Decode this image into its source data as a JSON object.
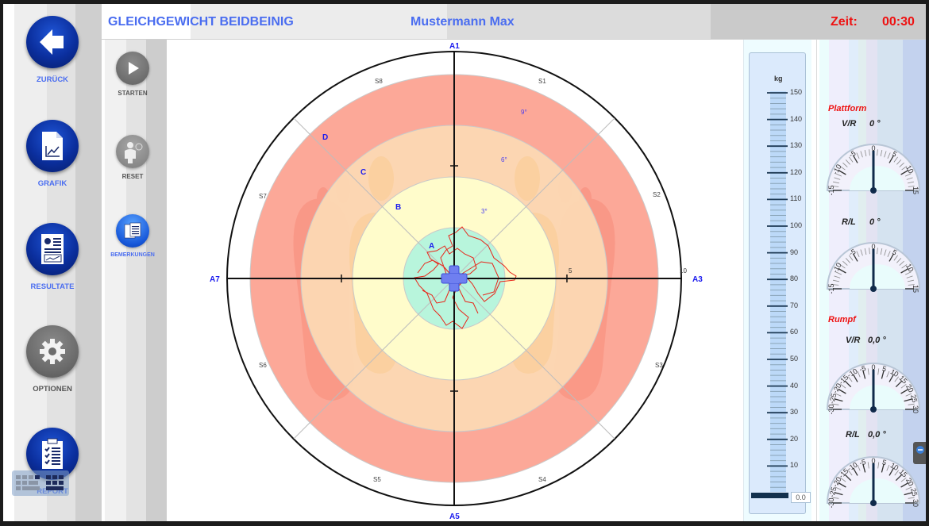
{
  "header": {
    "title": "GLEICHGEWICHT BEIDBEINIG",
    "patient": "Mustermann Max",
    "time_label": "Zeit:",
    "time_value": "00:30"
  },
  "nav": {
    "items": [
      {
        "label": "ZURÜCK",
        "icon": "back-arrow-icon"
      },
      {
        "label": "GRAFIK",
        "icon": "chart-document-icon"
      },
      {
        "label": "RESULTATE",
        "icon": "results-document-icon"
      },
      {
        "label": "OPTIONEN",
        "icon": "gear-icon"
      },
      {
        "label": "REPORT",
        "icon": "clipboard-checklist-icon"
      }
    ]
  },
  "tools": {
    "items": [
      {
        "label": "STARTEN",
        "icon": "play-icon"
      },
      {
        "label": "RESET",
        "icon": "person-reset-icon"
      },
      {
        "label": "BEMERKUNGEN",
        "icon": "notes-icon"
      }
    ]
  },
  "chart": {
    "axis_labels": {
      "top": "A1",
      "right": "A3",
      "bottom": "A5",
      "left": "A7"
    },
    "sector_labels": [
      "S1",
      "S2",
      "S3",
      "S4",
      "S5",
      "S6",
      "S7",
      "S8"
    ],
    "zone_labels": [
      "A",
      "B",
      "C",
      "D"
    ],
    "degree_labels": [
      "3°",
      "6°",
      "9°"
    ],
    "tick_labels": [
      "5",
      "10"
    ],
    "colors": {
      "zone_a": "#b8f5dc",
      "zone_b": "#fffccb",
      "zone_c": "#fcd9b4",
      "zone_d": "#fca898",
      "trace": "#e8261a",
      "label": "#1a1aee"
    }
  },
  "scale": {
    "unit": "kg",
    "ticks": [
      "150",
      "140",
      "130",
      "120",
      "110",
      "100",
      "90",
      "80",
      "70",
      "60",
      "50",
      "40",
      "30",
      "20",
      "10"
    ],
    "value": "0.0"
  },
  "gauges": {
    "platform_title": "Plattform",
    "trunk_title": "Rumpf",
    "platform": [
      {
        "axis": "V/R",
        "value": "0 °",
        "scale": [
          "-15",
          "-10",
          "-5",
          "0",
          "5",
          "10",
          "15"
        ]
      },
      {
        "axis": "R/L",
        "value": "0 °",
        "scale": [
          "-15",
          "-10",
          "-5",
          "0",
          "5",
          "10",
          "15"
        ]
      }
    ],
    "trunk": [
      {
        "axis": "V/R",
        "value": "0,0 °",
        "scale": [
          "-30",
          "-25",
          "-20",
          "-15",
          "-10",
          "-5",
          "0",
          "5",
          "10",
          "15",
          "20",
          "25",
          "30"
        ]
      },
      {
        "axis": "R/L",
        "value": "0,0 °",
        "scale": [
          "-30",
          "-25",
          "-20",
          "-15",
          "-10",
          "-5",
          "0",
          "5",
          "10",
          "15",
          "20",
          "25",
          "30"
        ]
      }
    ]
  }
}
